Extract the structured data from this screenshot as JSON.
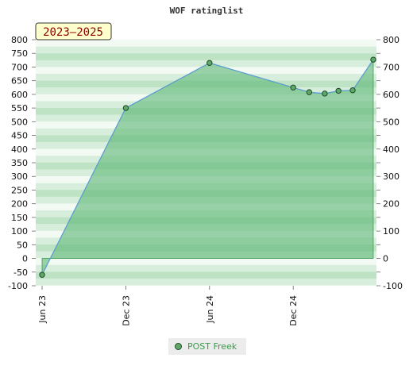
{
  "chart_data": {
    "type": "area",
    "title": "WOF ratinglist",
    "period_badge": "2023–2025",
    "xlabel": "",
    "ylabel": "",
    "ylim": [
      -100,
      800
    ],
    "y_ticks": [
      -100,
      -50,
      0,
      50,
      100,
      150,
      200,
      250,
      300,
      350,
      400,
      450,
      500,
      550,
      600,
      650,
      700,
      750,
      800
    ],
    "y_ticks_right": [
      -100,
      0,
      100,
      200,
      300,
      400,
      500,
      600,
      700,
      800
    ],
    "x_range": [
      "2023-06-01",
      "2025-06-01"
    ],
    "x_ticks": [
      {
        "date": "2023-06-01",
        "label": "Jun 23"
      },
      {
        "date": "2023-12-01",
        "label": "Dec 23"
      },
      {
        "date": "2024-06-01",
        "label": "Jun 24"
      },
      {
        "date": "2024-12-01",
        "label": "Dec 24"
      }
    ],
    "series": [
      {
        "name": "POST Freek",
        "points": [
          {
            "x": "2023-06-01",
            "y": -60
          },
          {
            "x": "2023-12-01",
            "y": 550
          },
          {
            "x": "2024-06-01",
            "y": 715
          },
          {
            "x": "2024-12-01",
            "y": 625
          },
          {
            "x": "2025-01-05",
            "y": 608
          },
          {
            "x": "2025-02-08",
            "y": 603
          },
          {
            "x": "2025-03-10",
            "y": 613
          },
          {
            "x": "2025-04-10",
            "y": 615
          },
          {
            "x": "2025-05-25",
            "y": 727
          }
        ]
      }
    ],
    "grid": true,
    "legend_position": "bottom-center",
    "colors": {
      "area_fill": "#5fb878",
      "line": "#5a9bd4",
      "marker_fill": "#5fa86a",
      "marker_stroke": "#1f4d26",
      "badge_bg": "#ffffcc",
      "badge_text": "#8b0000",
      "legend_text": "#3a9a4a"
    }
  }
}
